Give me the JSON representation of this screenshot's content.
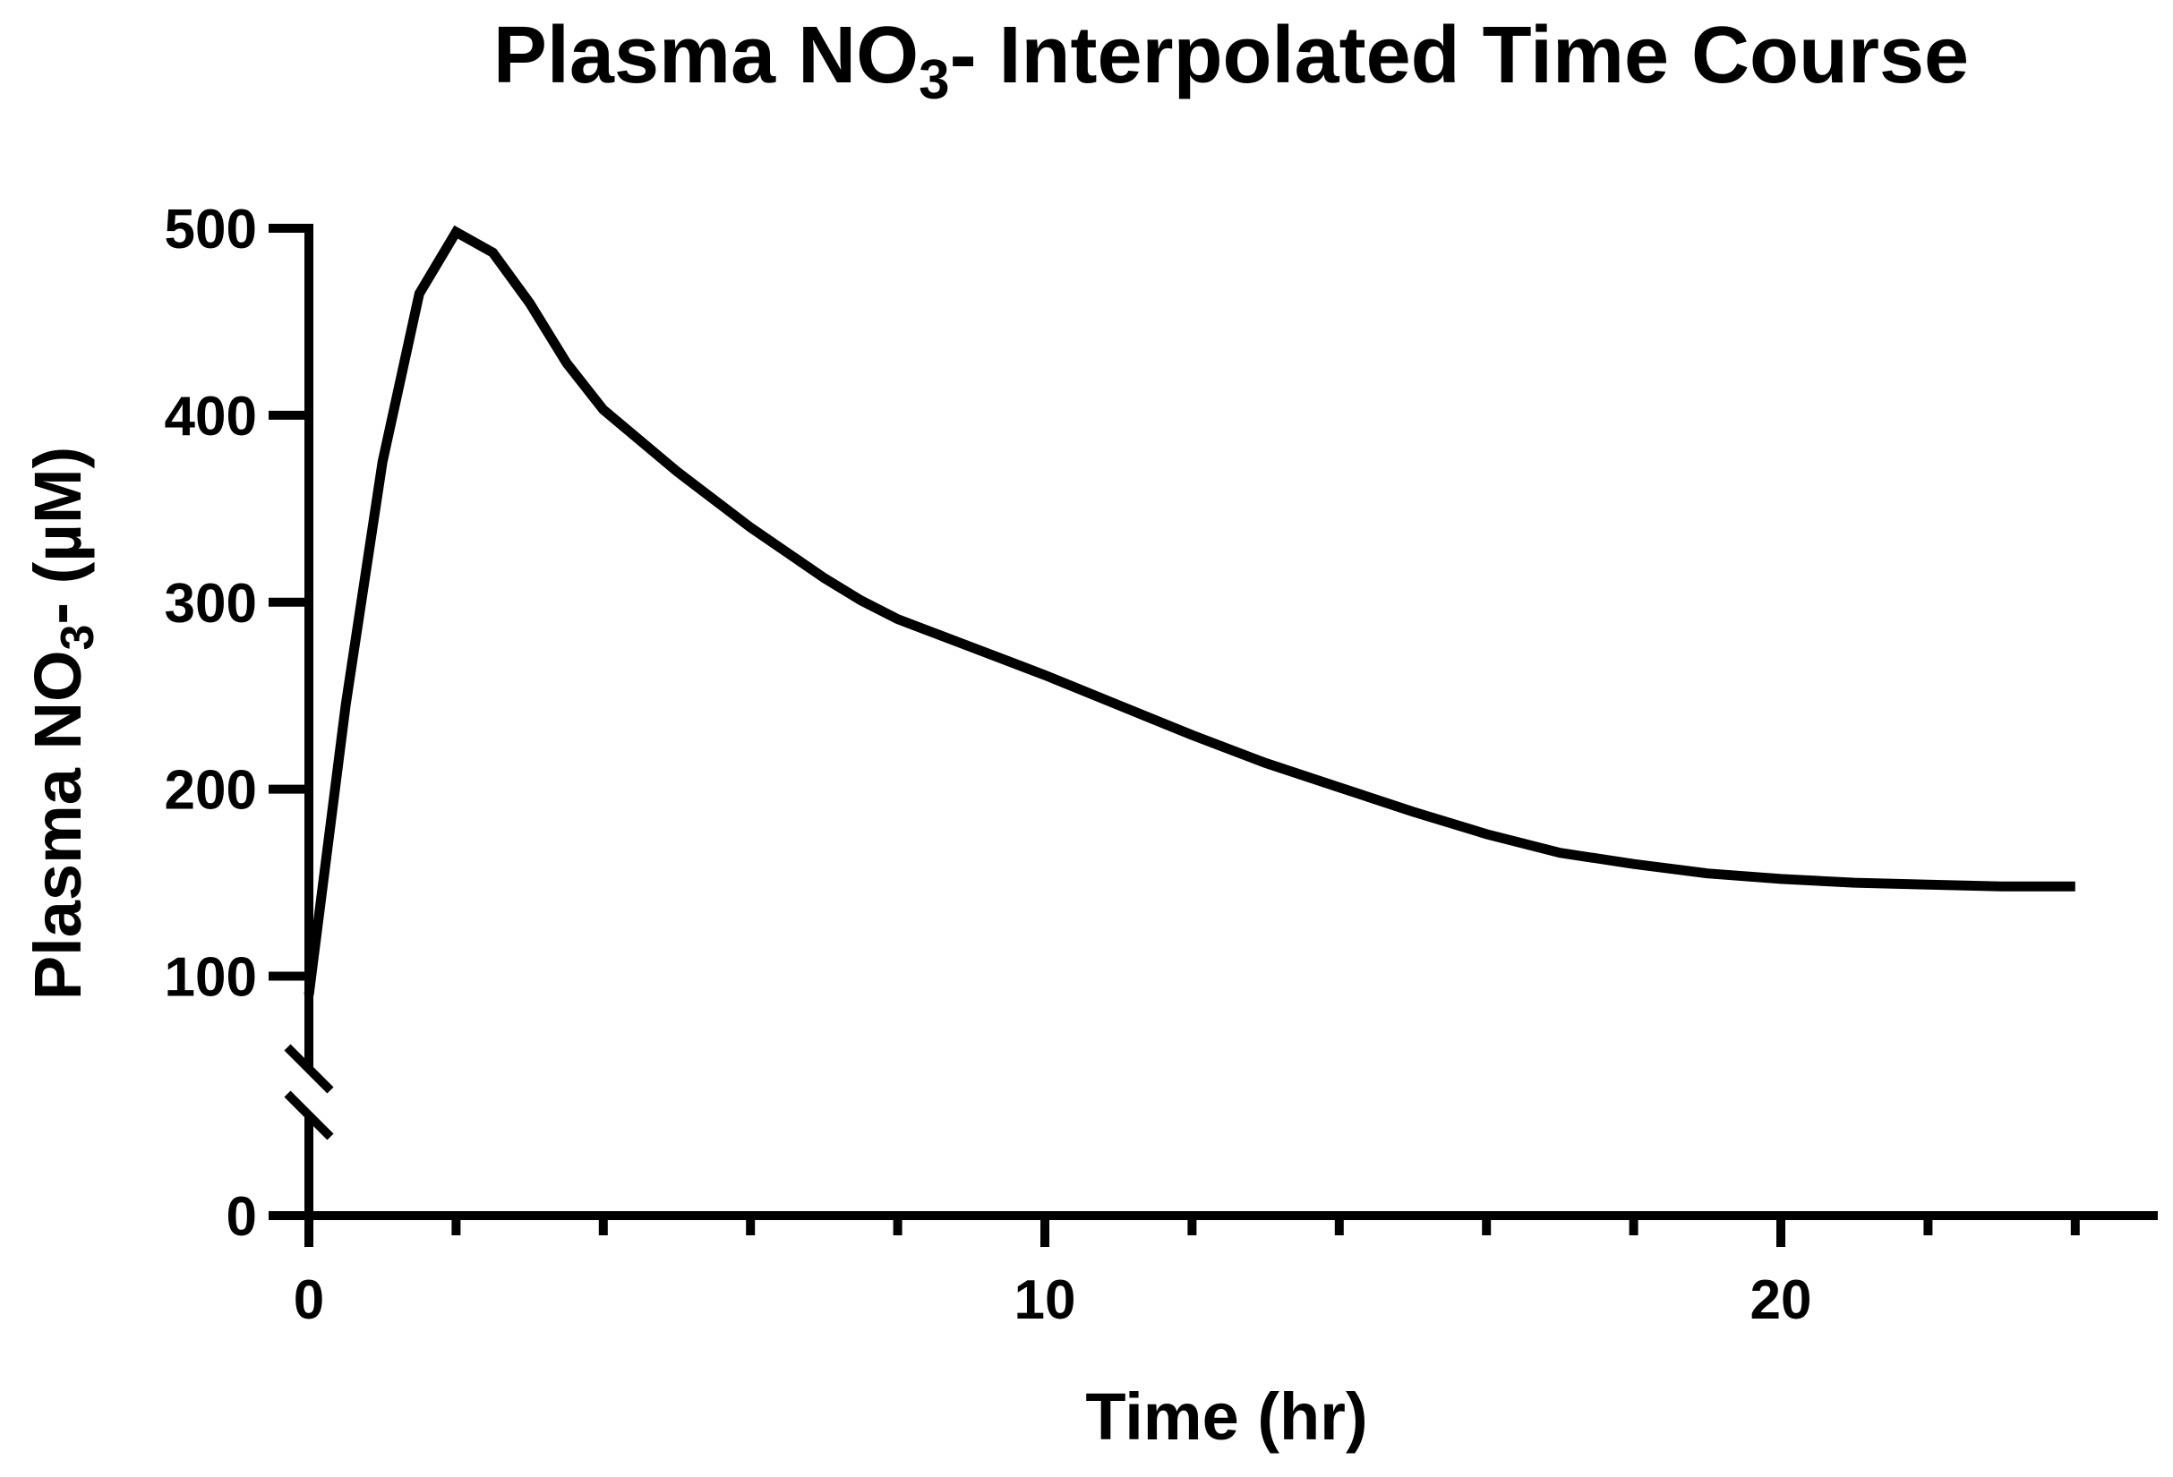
{
  "chart_data": {
    "type": "line",
    "title": {
      "prefix": "Plasma NO",
      "subscript": "3",
      "suffix": "- Interpolated Time Course"
    },
    "xlabel": "Time (hr)",
    "ylabel": {
      "prefix": "Plasma NO",
      "subscript": "3",
      "suffix": "- (µM)"
    },
    "xlim": [
      0,
      25
    ],
    "ylim_upper": [
      50,
      500
    ],
    "ylim_lower": [
      0,
      40
    ],
    "axis_break": true,
    "x_tick_labels": [
      {
        "value": 0,
        "label": "0"
      },
      {
        "value": 10,
        "label": "10"
      },
      {
        "value": 20,
        "label": "20"
      }
    ],
    "x_minor_ticks": [
      2,
      4,
      6,
      8,
      12,
      14,
      16,
      18,
      22,
      24
    ],
    "y_tick_labels": [
      {
        "value": 500,
        "label": "500"
      },
      {
        "value": 400,
        "label": "400"
      },
      {
        "value": 300,
        "label": "300"
      },
      {
        "value": 200,
        "label": "200"
      },
      {
        "value": 100,
        "label": "100"
      },
      {
        "value": 0,
        "label": "0"
      }
    ],
    "series": [
      {
        "name": "Plasma NO3-",
        "color": "#000000",
        "x": [
          0,
          0.5,
          1,
          1.5,
          2,
          2.5,
          3,
          3.5,
          4,
          5,
          6,
          7,
          7.5,
          8,
          9,
          10,
          11,
          12,
          13,
          14,
          15,
          16,
          17,
          18,
          19,
          20,
          21,
          22,
          23,
          24
        ],
        "y": [
          90,
          245,
          375,
          465,
          498,
          487,
          460,
          428,
          403,
          370,
          340,
          313,
          301,
          291,
          276,
          261,
          245,
          229,
          214,
          201,
          188,
          176,
          166,
          160,
          155,
          152,
          150,
          149,
          148,
          148
        ]
      }
    ]
  }
}
